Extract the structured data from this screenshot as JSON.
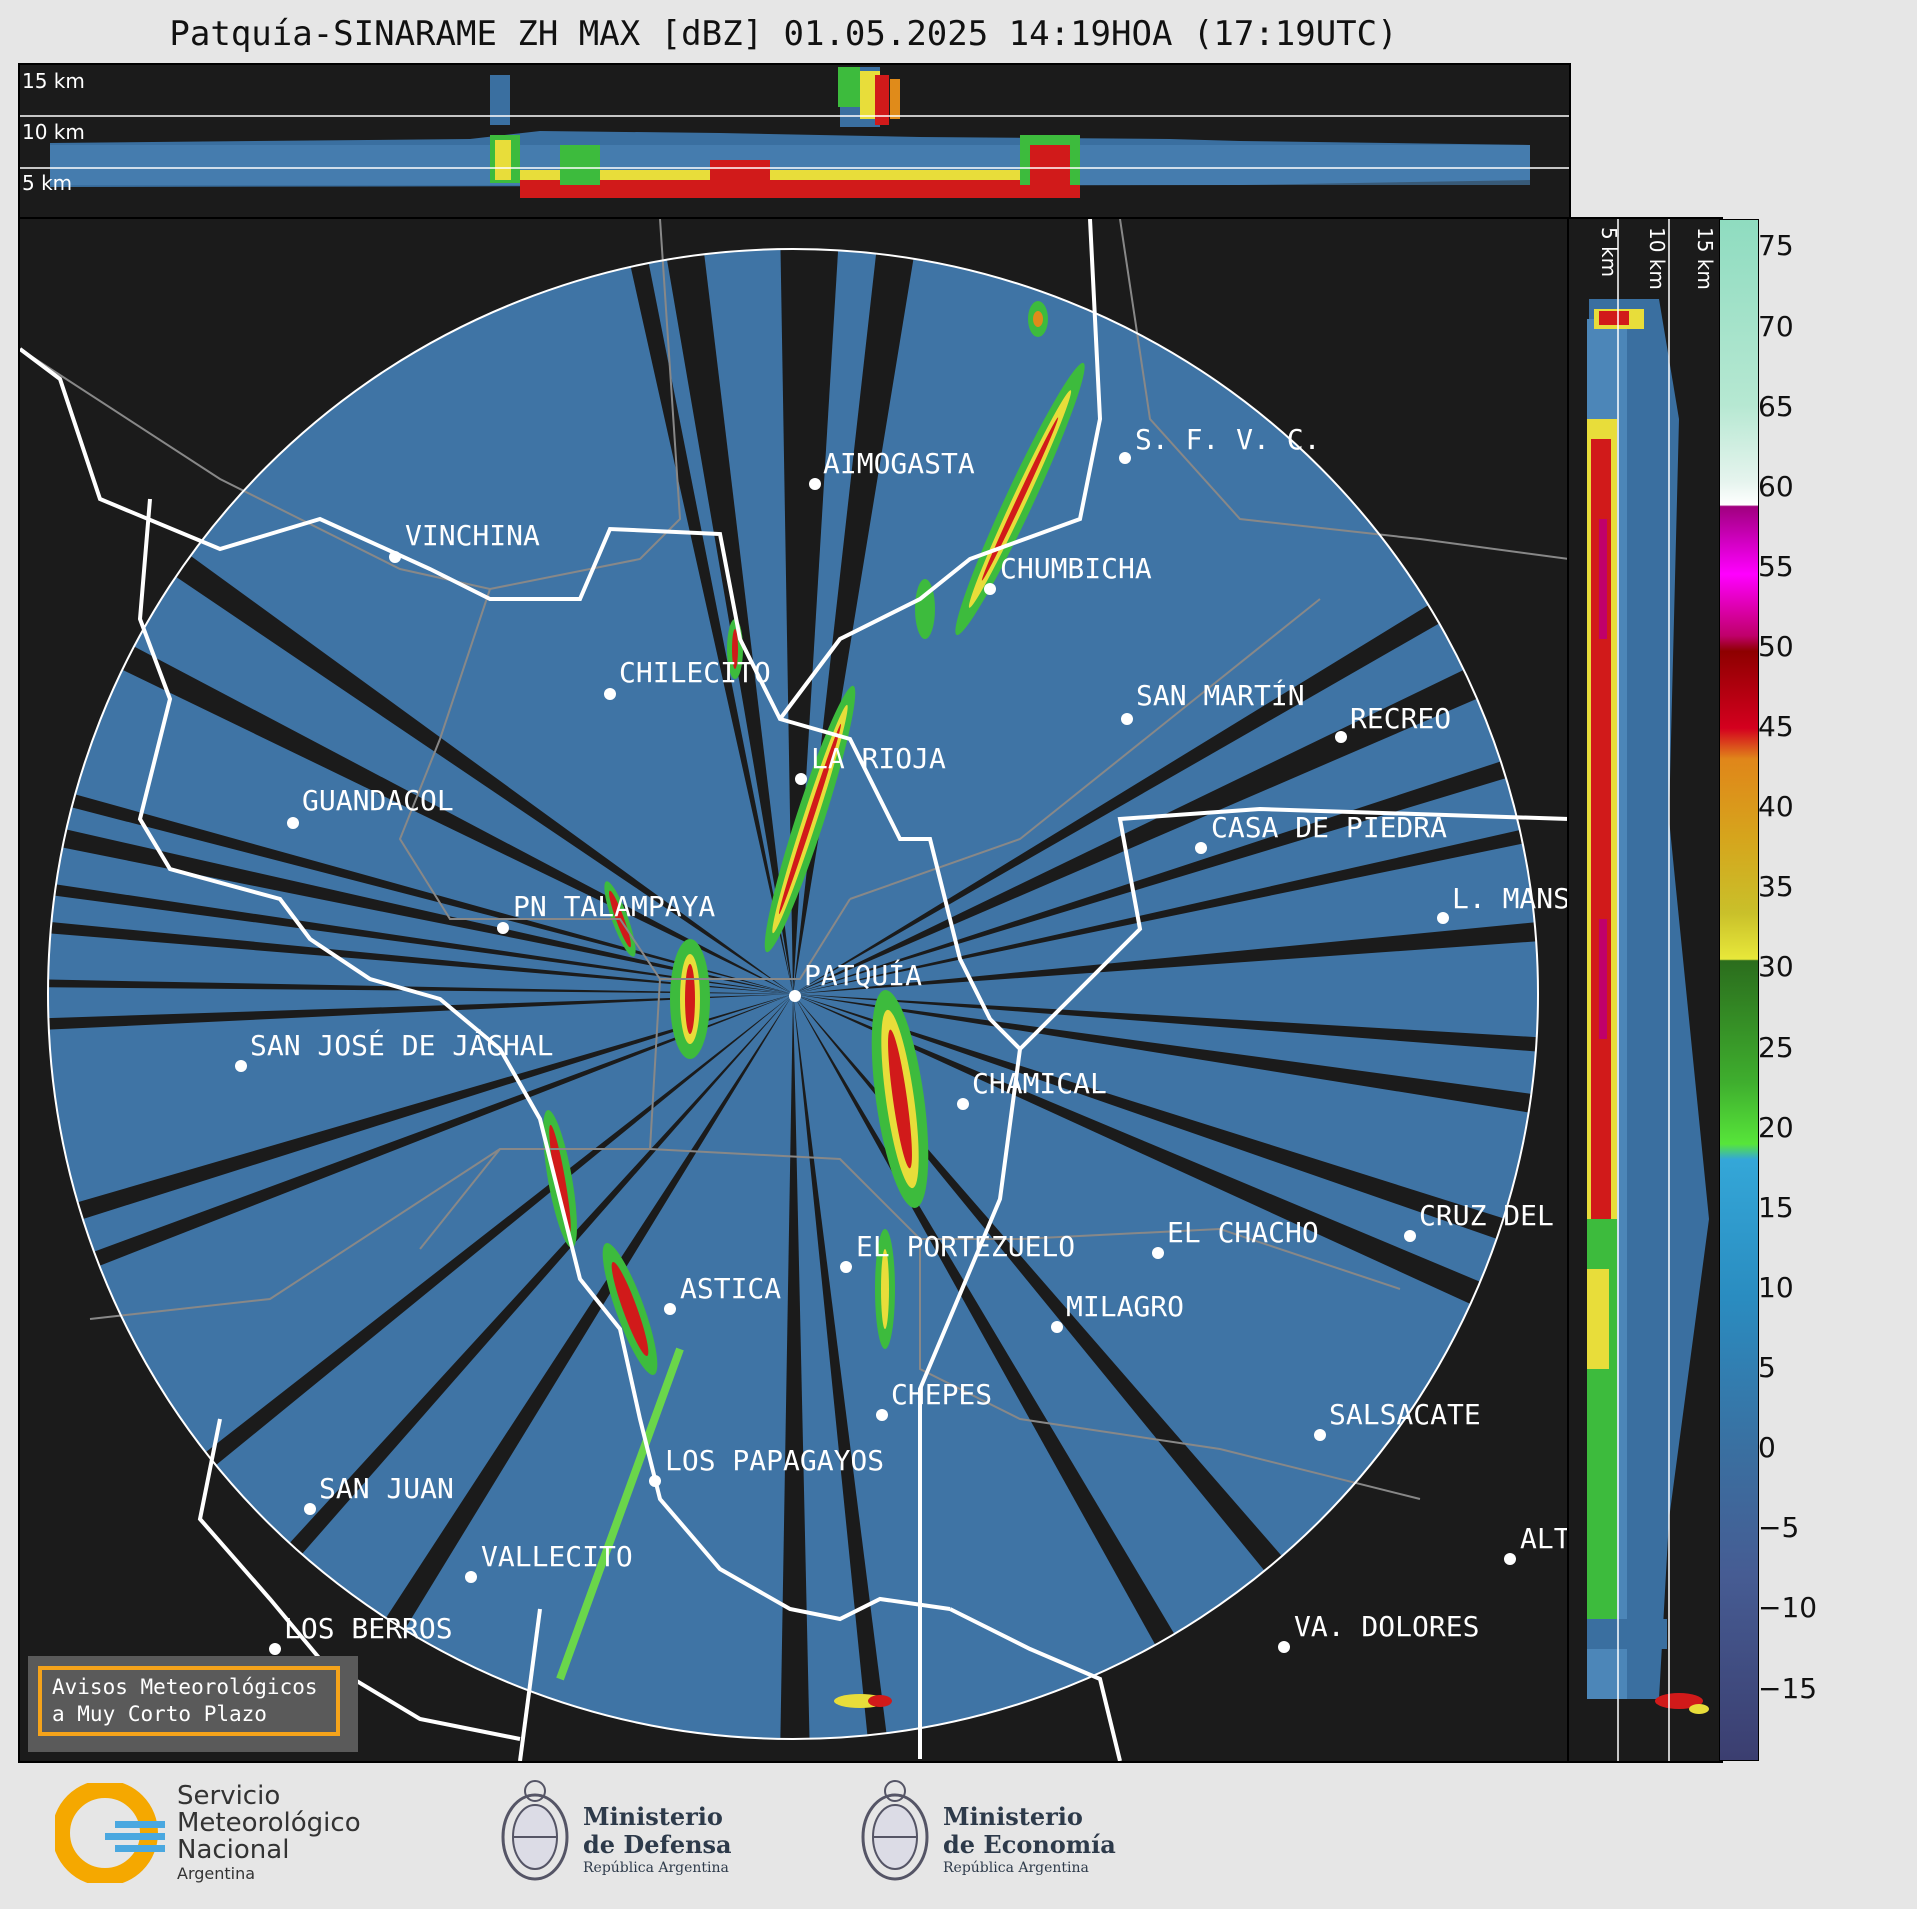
{
  "title": "Patquía-SINARAME ZH MAX [dBZ] 01.05.2025 14:19HOA (17:19UTC)",
  "top_panel": {
    "height_labels": [
      "15 km",
      "10 km",
      "5 km"
    ]
  },
  "side_panel": {
    "height_labels": [
      "5 km",
      "10 km",
      "15 km"
    ]
  },
  "colorbar": {
    "unit": "dBZ",
    "ticks": [
      "75",
      "70",
      "65",
      "60",
      "55",
      "50",
      "45",
      "40",
      "35",
      "30",
      "25",
      "20",
      "15",
      "10",
      "5",
      "0",
      "−5",
      "−10",
      "−15"
    ]
  },
  "locations": [
    "AIMOGASTA",
    "S. F. V. C.",
    "VINCHINA",
    "CHUMBICHA",
    "CHILECITO",
    "SAN MARTÍN",
    "RECREO",
    "LA RIOJA",
    "GUANDACOL",
    "CASA DE PIEDRA",
    "L. MANS",
    "PN TALAMPAYA",
    "PATQUÍA",
    "SAN JOSÉ DE JÁCHAL",
    "CHAMICAL",
    "CRUZ DEL",
    "EL CHACHO",
    "EL PORTEZUELO",
    "ASTICA",
    "MILAGRO",
    "CHEPES",
    "SALSACATE",
    "LOS PAPAGAYOS",
    "SAN JUAN",
    "ALT",
    "VALLECITO",
    "LOS BERROS",
    "VA. DOLORES"
  ],
  "warning_box": {
    "line1": "Avisos Meteorológicos",
    "line2": "a Muy Corto Plazo"
  },
  "logos": {
    "smn": {
      "line1": "Servicio",
      "line2": "Meteorológico",
      "line3": "Nacional",
      "line4": "Argentina"
    },
    "defensa": {
      "line1": "Ministerio",
      "line2": "de Defensa",
      "line3": "República Argentina"
    },
    "economia": {
      "line1": "Ministerio",
      "line2": "de Economía",
      "line3": "República Argentina"
    }
  },
  "colors": {
    "background": "#e6e6e6",
    "map_bg": "#1b1b1b",
    "echo_base": "#3a6fa0",
    "warning_border": "#f5a31a"
  }
}
